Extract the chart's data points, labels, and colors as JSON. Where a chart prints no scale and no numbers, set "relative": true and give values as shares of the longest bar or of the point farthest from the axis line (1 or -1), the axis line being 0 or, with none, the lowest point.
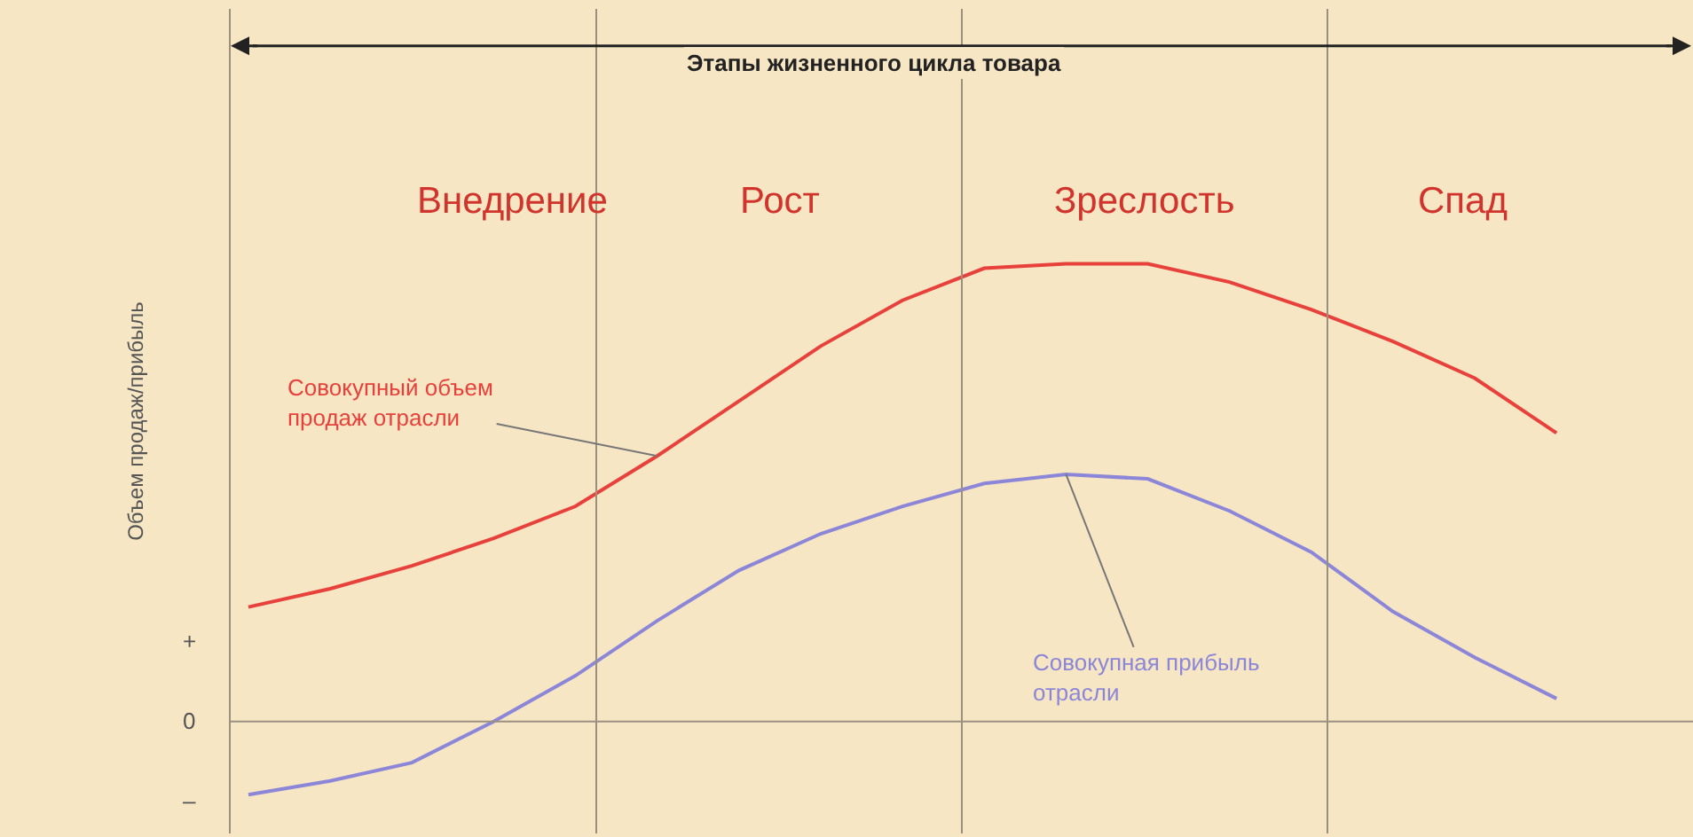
{
  "chart_data": {
    "type": "line",
    "relative": true,
    "title": "Этапы жизненного цикла товара",
    "ylabel": "Объем продаж/прибыль",
    "categories": [
      null,
      null,
      null,
      null,
      null,
      null,
      null,
      null,
      null,
      null,
      null,
      null,
      null,
      null,
      null,
      null,
      null
    ],
    "ref_lines": [
      {
        "axis": "y",
        "value": 0,
        "label": "0"
      }
    ],
    "annotations": [
      "Внедрение",
      "Рост",
      "Зреслость",
      "Спад",
      "+",
      "–"
    ],
    "series": [
      {
        "name": "Совокупный объем продаж отрасли",
        "color": "#e8413c",
        "values": [
          0.25,
          0.29,
          0.34,
          0.4,
          0.47,
          0.58,
          0.7,
          0.82,
          0.92,
          0.99,
          1.0,
          1.0,
          0.96,
          0.9,
          0.83,
          0.75,
          0.63
        ]
      },
      {
        "name": "Совокупная прибыль отрасли",
        "color": "#8c86d8",
        "values": [
          -0.16,
          -0.13,
          -0.09,
          0.0,
          0.1,
          0.22,
          0.33,
          0.41,
          0.47,
          0.52,
          0.54,
          0.53,
          0.46,
          0.37,
          0.24,
          0.14,
          0.05
        ]
      }
    ],
    "grid": false,
    "legend": false,
    "marker": "none",
    "line_style": "solid"
  }
}
